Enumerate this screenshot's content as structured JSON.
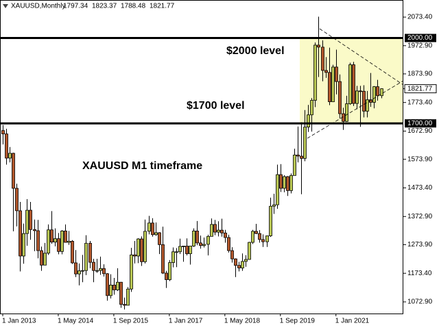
{
  "chart_data": {
    "type": "candlestick",
    "symbol": "XAUUSD,Monthly",
    "categories": [
      "1 Jan 2013",
      null,
      null,
      null,
      null,
      null,
      null,
      null,
      null,
      null,
      null,
      null,
      null,
      null,
      null,
      null,
      "1 May 2014",
      null,
      null,
      null,
      null,
      null,
      null,
      null,
      null,
      null,
      null,
      null,
      null,
      null,
      null,
      null,
      "1 Sep 2015",
      null,
      null,
      null,
      null,
      null,
      null,
      null,
      null,
      null,
      null,
      null,
      null,
      null,
      null,
      null,
      "1 Jan 2017",
      null,
      null,
      null,
      null,
      null,
      null,
      null,
      null,
      null,
      null,
      null,
      null,
      null,
      null,
      null,
      "1 May 2018",
      null,
      null,
      null,
      null,
      null,
      null,
      null,
      null,
      null,
      null,
      null,
      null,
      null,
      null,
      null,
      "1 Sep 2019",
      null,
      null,
      null,
      null,
      null,
      null,
      null,
      null,
      null,
      null,
      null,
      null,
      null,
      null,
      null,
      "1 Jan 2021",
      null,
      null,
      null,
      null,
      null,
      null,
      null,
      null,
      null,
      null,
      null,
      null,
      null
    ],
    "open": [
      1675,
      1663,
      1578,
      1595,
      1472,
      1393,
      1234,
      1313,
      1395,
      1327,
      1323,
      1253,
      1202,
      1244,
      1326,
      1283,
      1295,
      1250,
      1322,
      1282,
      1286,
      1210,
      1171,
      1182,
      1183,
      1279,
      1212,
      1183,
      1183,
      1190,
      1172,
      1095,
      1132,
      1115,
      1142,
      1064,
      1061,
      1118,
      1238,
      1234,
      1294,
      1214,
      1321,
      1350,
      1309,
      1316,
      1274,
      1174,
      1151,
      1211,
      1249,
      1249,
      1268,
      1269,
      1242,
      1269,
      1322,
      1280,
      1271,
      1275,
      1303,
      1345,
      1318,
      1325,
      1315,
      1299,
      1253,
      1224,
      1201,
      1192,
      1215,
      1222,
      1282,
      1321,
      1313,
      1292,
      1284,
      1305,
      1409,
      1414,
      1520,
      1472,
      1513,
      1464,
      1517,
      1589,
      1585,
      1577,
      1687,
      1730,
      1781,
      1975,
      1968,
      1886,
      1879,
      1776,
      1898,
      1847,
      1734,
      1707,
      1769,
      1906,
      1770,
      1814,
      1813,
      1743,
      1783,
      1774,
      1829,
      1797.34
    ],
    "high": [
      1694,
      1681,
      1617,
      1597,
      1488,
      1424,
      1348,
      1434,
      1424,
      1362,
      1361,
      1267,
      1280,
      1345,
      1392,
      1331,
      1315,
      1325,
      1345,
      1322,
      1290,
      1255,
      1208,
      1238,
      1307,
      1287,
      1224,
      1224,
      1232,
      1205,
      1174,
      1170,
      1157,
      1191,
      1143,
      1088,
      1125,
      1263,
      1287,
      1297,
      1303,
      1362,
      1375,
      1367,
      1352,
      1318,
      1337,
      1182,
      1220,
      1264,
      1262,
      1295,
      1270,
      1296,
      1270,
      1331,
      1357,
      1306,
      1299,
      1309,
      1366,
      1361,
      1356,
      1365,
      1326,
      1309,
      1265,
      1226,
      1214,
      1243,
      1237,
      1284,
      1326,
      1347,
      1325,
      1310,
      1306,
      1439,
      1453,
      1555,
      1557,
      1518,
      1515,
      1524,
      1611,
      1689,
      1704,
      1747,
      1765,
      1789,
      1984,
      2075,
      1992,
      1933,
      1966,
      1906,
      1959,
      1872,
      1755,
      1797,
      1913,
      1916,
      1832,
      1832,
      1834,
      1814,
      1877,
      1831,
      1853,
      1823.37
    ],
    "low": [
      1626,
      1555,
      1563,
      1321,
      1338,
      1180,
      1207,
      1270,
      1291,
      1251,
      1226,
      1182,
      1202,
      1238,
      1277,
      1268,
      1240,
      1240,
      1281,
      1273,
      1206,
      1160,
      1131,
      1142,
      1167,
      1191,
      1142,
      1175,
      1168,
      1162,
      1077,
      1085,
      1098,
      1111,
      1052,
      1046,
      1061,
      1108,
      1208,
      1209,
      1199,
      1208,
      1310,
      1302,
      1305,
      1241,
      1171,
      1122,
      1146,
      1194,
      1195,
      1241,
      1214,
      1236,
      1204,
      1266,
      1272,
      1260,
      1264,
      1236,
      1303,
      1307,
      1303,
      1302,
      1281,
      1246,
      1211,
      1160,
      1180,
      1182,
      1196,
      1221,
      1276,
      1311,
      1281,
      1266,
      1266,
      1301,
      1382,
      1400,
      1459,
      1458,
      1445,
      1454,
      1517,
      1563,
      1451,
      1567,
      1670,
      1671,
      1757,
      1863,
      1848,
      1860,
      1764,
      1775,
      1802,
      1717,
      1677,
      1705,
      1765,
      1761,
      1750,
      1688,
      1721,
      1721,
      1758,
      1753,
      1780,
      1788.48
    ],
    "close": [
      1663,
      1578,
      1595,
      1472,
      1393,
      1234,
      1313,
      1395,
      1327,
      1323,
      1253,
      1202,
      1244,
      1326,
      1283,
      1295,
      1250,
      1322,
      1282,
      1286,
      1210,
      1171,
      1182,
      1183,
      1279,
      1212,
      1183,
      1183,
      1190,
      1172,
      1095,
      1132,
      1115,
      1142,
      1064,
      1061,
      1118,
      1238,
      1234,
      1294,
      1214,
      1321,
      1350,
      1309,
      1316,
      1274,
      1174,
      1151,
      1211,
      1249,
      1249,
      1268,
      1269,
      1242,
      1269,
      1322,
      1280,
      1271,
      1275,
      1303,
      1345,
      1318,
      1325,
      1315,
      1299,
      1253,
      1224,
      1201,
      1192,
      1215,
      1222,
      1282,
      1321,
      1313,
      1292,
      1284,
      1305,
      1409,
      1414,
      1520,
      1472,
      1513,
      1464,
      1517,
      1589,
      1585,
      1577,
      1687,
      1730,
      1781,
      1975,
      1968,
      1886,
      1879,
      1776,
      1898,
      1847,
      1734,
      1707,
      1769,
      1906,
      1770,
      1814,
      1813,
      1743,
      1783,
      1774,
      1829,
      1797.34,
      1821.77
    ],
    "up_color": "#b8c653",
    "down_color": "#b0562b",
    "ylim": [
      1032,
      2133.5
    ],
    "yticks": [
      {
        "value": 1072.9,
        "label": "1072.90"
      },
      {
        "value": 1173.4,
        "label": "1173.40"
      },
      {
        "value": 1273.9,
        "label": "1273.90"
      },
      {
        "value": 1372.9,
        "label": "1372.90"
      },
      {
        "value": 1473.4,
        "label": "1473.40"
      },
      {
        "value": 1573.9,
        "label": "1573.90"
      },
      {
        "value": 1672.9,
        "label": "1672.90"
      },
      {
        "value": 1773.4,
        "label": "1773.40"
      },
      {
        "value": 1873.9,
        "label": "1873.90"
      },
      {
        "value": 1972.9,
        "label": "1972.90"
      },
      {
        "value": 2073.4,
        "label": "2073.40"
      }
    ],
    "levels": [
      {
        "value": 2000,
        "label": "2000.00"
      },
      {
        "value": 1700,
        "label": "1700.00"
      }
    ],
    "current_price": {
      "value": 1821.77,
      "label": "1821.77"
    },
    "annotations": [
      "$2000 level",
      "$1700 level",
      "XAUUSD M1 timeframe"
    ]
  }
}
